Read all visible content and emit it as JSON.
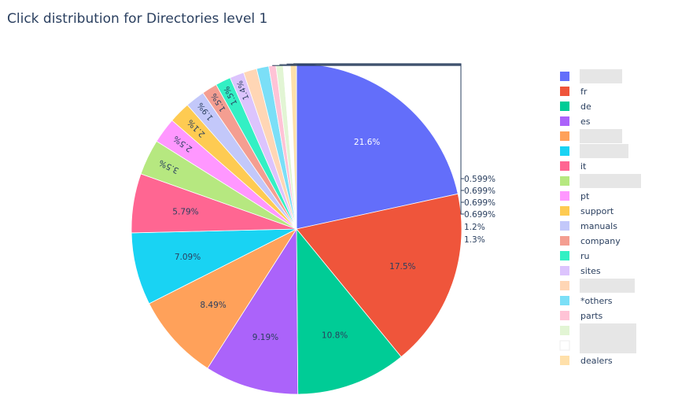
{
  "chart_data": {
    "type": "pie",
    "title": "Click distribution for Directories level 1",
    "categories": [
      "",
      "fr",
      "de",
      "es",
      "",
      "",
      "it",
      "",
      "pt",
      "support",
      "manuals",
      "company",
      "ru",
      "sites",
      "",
      "*others",
      "parts",
      "",
      "",
      "dealers"
    ],
    "values": [
      21.6,
      17.5,
      10.8,
      9.19,
      8.49,
      7.09,
      5.79,
      3.5,
      2.5,
      2.1,
      1.9,
      1.5,
      1.5,
      1.4,
      1.3,
      1.2,
      0.699,
      0.699,
      0.699,
      0.599
    ],
    "labels": [
      "21.6%",
      "17.5%",
      "10.8%",
      "9.19%",
      "8.49%",
      "7.09%",
      "5.79%",
      "3.5%",
      "2.5%",
      "2.1%",
      "1.9%",
      "1.5%",
      "1.5%",
      "1.4%",
      "1.3%",
      "1.2%",
      "0.699%",
      "0.699%",
      "0.699%",
      "0.599%"
    ],
    "colors": [
      "#636efa",
      "#EF553B",
      "#00cc96",
      "#ab63fa",
      "#FFA15A",
      "#19d3f3",
      "#FF6692",
      "#B6E880",
      "#FF97FF",
      "#FECB52",
      "#c3c8fa",
      "#f49e91",
      "#33f0c4",
      "#dcc4fd",
      "#ffd6b5",
      "#7bdff7",
      "#ffc3d6",
      "#e2f5d4",
      "#ffffff",
      "#ffe0aa"
    ],
    "legend_placement": "right",
    "redacted_legend_entries": [
      0,
      4,
      5,
      7,
      14,
      17,
      18
    ]
  }
}
